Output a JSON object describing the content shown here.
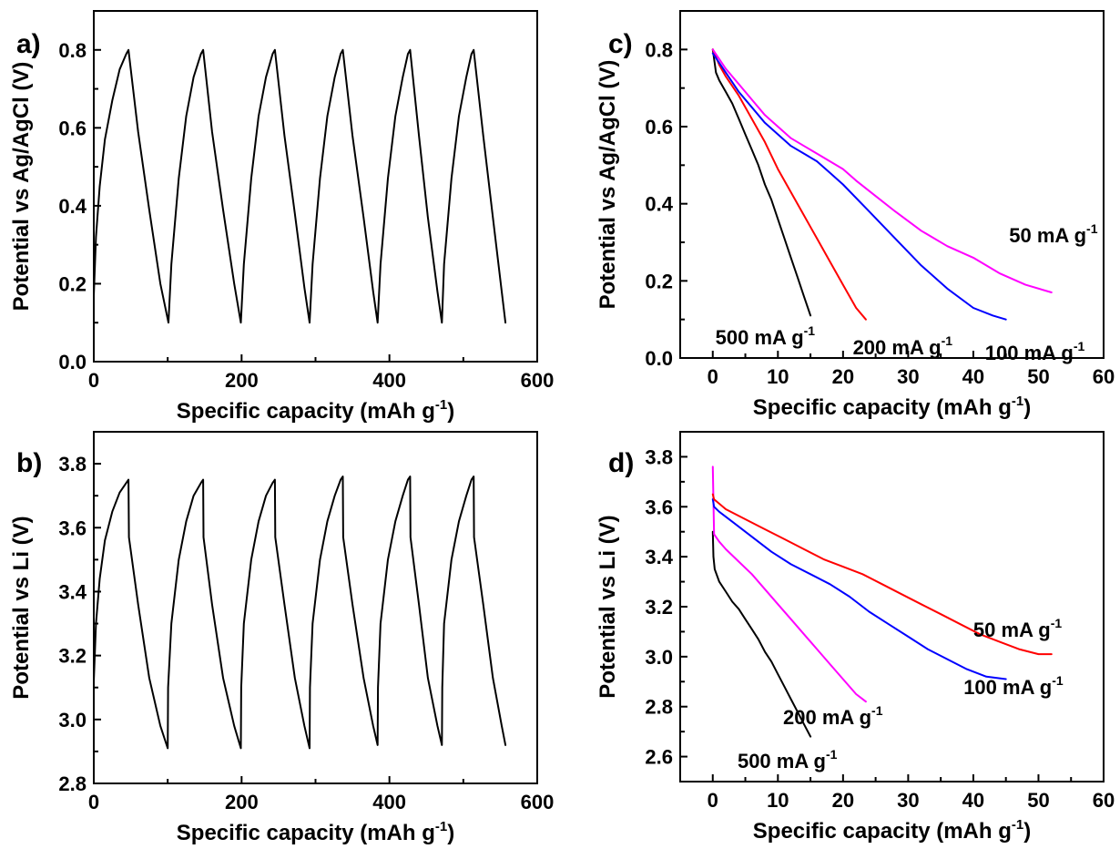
{
  "chart_data": [
    {
      "id": "a",
      "panel_label": "a)",
      "type": "line",
      "xlabel": "Specific capacity (mAh g",
      "xlabel_sup": "-1",
      "xlabel_end": ")",
      "ylabel": "Potential vs Ag/AgCl (V)",
      "xlim": [
        0,
        600
      ],
      "ylim": [
        0,
        0.9
      ],
      "xticks": [
        0,
        200,
        400,
        600
      ],
      "xtick_labels": [
        "0",
        "200",
        "400",
        "600"
      ],
      "yticks": [
        0.0,
        0.2,
        0.4,
        0.6,
        0.8
      ],
      "ytick_labels": [
        "0.0",
        "0.2",
        "0.4",
        "0.6",
        "0.8"
      ],
      "series": [
        {
          "color": "#000000",
          "x": [
            0,
            3,
            8,
            15,
            25,
            35,
            44,
            47,
            60,
            75,
            90,
            101,
            105,
            115,
            125,
            135,
            145,
            148,
            160,
            175,
            190,
            199,
            203,
            213,
            223,
            233,
            242,
            245,
            258,
            272,
            285,
            292,
            296,
            306,
            316,
            326,
            334,
            337,
            350,
            365,
            378,
            384,
            388,
            398,
            408,
            418,
            425,
            428,
            440,
            452,
            465,
            471,
            474,
            484,
            494,
            504,
            511,
            514,
            527,
            540,
            552,
            557
          ],
          "y": [
            0.17,
            0.32,
            0.45,
            0.57,
            0.67,
            0.75,
            0.79,
            0.8,
            0.59,
            0.39,
            0.2,
            0.1,
            0.25,
            0.47,
            0.63,
            0.73,
            0.79,
            0.8,
            0.59,
            0.39,
            0.2,
            0.1,
            0.25,
            0.47,
            0.63,
            0.73,
            0.79,
            0.8,
            0.58,
            0.38,
            0.19,
            0.1,
            0.25,
            0.47,
            0.63,
            0.73,
            0.79,
            0.8,
            0.58,
            0.37,
            0.18,
            0.1,
            0.25,
            0.47,
            0.63,
            0.73,
            0.79,
            0.8,
            0.58,
            0.37,
            0.18,
            0.1,
            0.25,
            0.47,
            0.63,
            0.73,
            0.79,
            0.8,
            0.58,
            0.37,
            0.18,
            0.1
          ]
        }
      ],
      "annotations": []
    },
    {
      "id": "b",
      "panel_label": "b)",
      "type": "line",
      "xlabel": "Specific capacity (mAh g",
      "xlabel_sup": "-1",
      "xlabel_end": ")",
      "ylabel": "Potential vs Li (V)",
      "xlim": [
        0,
        600
      ],
      "ylim": [
        2.8,
        3.9
      ],
      "xticks": [
        0,
        200,
        400,
        600
      ],
      "xtick_labels": [
        "0",
        "200",
        "400",
        "600"
      ],
      "yticks": [
        2.8,
        3.0,
        3.2,
        3.4,
        3.6,
        3.8
      ],
      "ytick_labels": [
        "2.8",
        "3.0",
        "3.2",
        "3.4",
        "3.6",
        "3.8"
      ],
      "series": [
        {
          "color": "#000000",
          "x": [
            0,
            3,
            8,
            15,
            25,
            35,
            44,
            47,
            47.5,
            60,
            75,
            90,
            100,
            100.5,
            105,
            115,
            125,
            135,
            145,
            148,
            148.5,
            160,
            175,
            190,
            199,
            199.5,
            203,
            213,
            223,
            233,
            242,
            245,
            245.5,
            258,
            272,
            285,
            292,
            292.5,
            296,
            306,
            316,
            326,
            334,
            337,
            337.5,
            350,
            365,
            378,
            384,
            384.5,
            388,
            398,
            408,
            418,
            425,
            428,
            428.5,
            440,
            452,
            465,
            471,
            471.5,
            474,
            484,
            494,
            504,
            511,
            514,
            514.5,
            527,
            540,
            552,
            557
          ],
          "y": [
            3.12,
            3.3,
            3.44,
            3.56,
            3.65,
            3.71,
            3.74,
            3.75,
            3.57,
            3.36,
            3.13,
            2.98,
            2.91,
            3.1,
            3.3,
            3.5,
            3.62,
            3.7,
            3.74,
            3.75,
            3.57,
            3.36,
            3.13,
            2.98,
            2.91,
            3.1,
            3.3,
            3.5,
            3.62,
            3.7,
            3.74,
            3.75,
            3.57,
            3.36,
            3.13,
            2.98,
            2.91,
            3.1,
            3.3,
            3.5,
            3.62,
            3.7,
            3.75,
            3.76,
            3.57,
            3.36,
            3.13,
            2.98,
            2.92,
            3.1,
            3.3,
            3.5,
            3.62,
            3.7,
            3.75,
            3.76,
            3.57,
            3.36,
            3.13,
            2.98,
            2.92,
            3.1,
            3.3,
            3.5,
            3.62,
            3.7,
            3.75,
            3.76,
            3.57,
            3.36,
            3.13,
            2.98,
            2.92
          ]
        }
      ],
      "annotations": []
    },
    {
      "id": "c",
      "panel_label": "c)",
      "type": "line",
      "xlabel": "Specific capacity (mAh g",
      "xlabel_sup": "-1",
      "xlabel_end": ")",
      "ylabel": "Potential vs Ag/AgCl (V)",
      "xlim": [
        -5,
        60
      ],
      "ylim": [
        0,
        0.9
      ],
      "xticks": [
        0,
        10,
        20,
        30,
        40,
        50,
        60
      ],
      "xtick_labels": [
        "0",
        "10",
        "20",
        "30",
        "40",
        "50",
        "60"
      ],
      "yticks": [
        0.0,
        0.2,
        0.4,
        0.6,
        0.8
      ],
      "ytick_labels": [
        "0.0",
        "0.2",
        "0.4",
        "0.6",
        "0.8"
      ],
      "series": [
        {
          "label": "500 mA g-1",
          "color": "#000000",
          "x": [
            0,
            0.5,
            1,
            2,
            3,
            4,
            5,
            6,
            7,
            8,
            9,
            10,
            11,
            12,
            13,
            14,
            15
          ],
          "y": [
            0.8,
            0.74,
            0.72,
            0.69,
            0.66,
            0.62,
            0.58,
            0.54,
            0.5,
            0.45,
            0.41,
            0.36,
            0.31,
            0.26,
            0.21,
            0.16,
            0.11
          ]
        },
        {
          "label": "200 mA g-1",
          "color": "#ff0000",
          "x": [
            0,
            1,
            2,
            4,
            6,
            8,
            10,
            12,
            14,
            16,
            18,
            20,
            22,
            23.5
          ],
          "y": [
            0.8,
            0.76,
            0.73,
            0.68,
            0.62,
            0.56,
            0.49,
            0.43,
            0.37,
            0.31,
            0.25,
            0.19,
            0.13,
            0.1
          ]
        },
        {
          "label": "100 mA g-1",
          "color": "#0000ff",
          "x": [
            0,
            2,
            4,
            6,
            8,
            10,
            12,
            14,
            16,
            18,
            20,
            24,
            28,
            32,
            36,
            40,
            43,
            45
          ],
          "y": [
            0.79,
            0.74,
            0.69,
            0.65,
            0.61,
            0.58,
            0.55,
            0.53,
            0.51,
            0.48,
            0.45,
            0.38,
            0.31,
            0.24,
            0.18,
            0.13,
            0.11,
            0.1
          ]
        },
        {
          "label": "50 mA g-1",
          "color": "#ff00ff",
          "x": [
            0,
            2,
            4,
            6,
            8,
            10,
            12,
            14,
            16,
            18,
            20,
            22,
            25,
            28,
            32,
            36,
            40,
            44,
            48,
            52
          ],
          "y": [
            0.8,
            0.75,
            0.71,
            0.67,
            0.63,
            0.6,
            0.57,
            0.55,
            0.53,
            0.51,
            0.49,
            0.46,
            0.42,
            0.38,
            0.33,
            0.29,
            0.26,
            0.22,
            0.19,
            0.17
          ]
        }
      ],
      "annotations": [
        {
          "text": "500 mA g",
          "sup": "-1",
          "x": 0.4,
          "y": 0.035
        },
        {
          "text": "200 mA g",
          "sup": "-1",
          "x": 21.5,
          "y": 0.01
        },
        {
          "text": "100 mA g",
          "sup": "-1",
          "x": 41.8,
          "y": -0.005
        },
        {
          "text": "50 mA g",
          "sup": "-1",
          "x": 45.5,
          "y": 0.3
        }
      ]
    },
    {
      "id": "d",
      "panel_label": "d)",
      "type": "line",
      "xlabel": "Specific capacity (mAh g",
      "xlabel_sup": "-1",
      "xlabel_end": ")",
      "ylabel": "Potential vs Li (V)",
      "xlim": [
        -5,
        60
      ],
      "ylim": [
        2.5,
        3.9
      ],
      "xticks": [
        0,
        10,
        20,
        30,
        40,
        50,
        60
      ],
      "xtick_labels": [
        "0",
        "10",
        "20",
        "30",
        "40",
        "50",
        "60"
      ],
      "yticks": [
        2.6,
        2.8,
        3.0,
        3.2,
        3.4,
        3.6,
        3.8
      ],
      "ytick_labels": [
        "2.6",
        "2.8",
        "3.0",
        "3.2",
        "3.4",
        "3.6",
        "3.8"
      ],
      "series": [
        {
          "label": "500 mA g-1",
          "color": "#000000",
          "x": [
            0,
            0.1,
            0.3,
            1,
            2,
            3,
            4,
            5,
            6,
            7,
            8,
            9,
            10,
            11,
            12,
            13,
            14,
            15
          ],
          "y": [
            3.5,
            3.4,
            3.35,
            3.3,
            3.26,
            3.22,
            3.19,
            3.15,
            3.11,
            3.07,
            3.02,
            2.98,
            2.93,
            2.88,
            2.83,
            2.78,
            2.73,
            2.68
          ]
        },
        {
          "label": "200 mA g-1",
          "color": "#ff00ff",
          "x": [
            0,
            0.2,
            1,
            2,
            4,
            6,
            8,
            10,
            12,
            14,
            16,
            18,
            20,
            22,
            23.5
          ],
          "y": [
            3.76,
            3.49,
            3.46,
            3.43,
            3.38,
            3.33,
            3.27,
            3.21,
            3.15,
            3.09,
            3.03,
            2.97,
            2.91,
            2.85,
            2.82
          ]
        },
        {
          "label": "100 mA g-1",
          "color": "#0000ff",
          "x": [
            0,
            0.2,
            1,
            3,
            6,
            9,
            12,
            15,
            18,
            21,
            24,
            27,
            30,
            33,
            36,
            39,
            42,
            45
          ],
          "y": [
            3.63,
            3.6,
            3.58,
            3.54,
            3.48,
            3.42,
            3.37,
            3.33,
            3.29,
            3.24,
            3.18,
            3.13,
            3.08,
            3.03,
            2.99,
            2.95,
            2.92,
            2.91
          ]
        },
        {
          "label": "50 mA g-1",
          "color": "#ff0000",
          "x": [
            0,
            0.2,
            2,
            5,
            8,
            11,
            14,
            17,
            20,
            23,
            26,
            29,
            32,
            35,
            38,
            41,
            44,
            47,
            50,
            52
          ],
          "y": [
            3.65,
            3.63,
            3.59,
            3.55,
            3.51,
            3.47,
            3.43,
            3.39,
            3.36,
            3.33,
            3.29,
            3.25,
            3.21,
            3.17,
            3.13,
            3.09,
            3.06,
            3.03,
            3.01,
            3.01
          ]
        }
      ],
      "annotations": [
        {
          "text": "500 mA g",
          "sup": "-1",
          "x": 3.8,
          "y": 2.555
        },
        {
          "text": "200 mA g",
          "sup": "-1",
          "x": 10.8,
          "y": 2.73
        },
        {
          "text": "100 mA g",
          "sup": "-1",
          "x": 38.5,
          "y": 2.85
        },
        {
          "text": "50 mA g",
          "sup": "-1",
          "x": 40,
          "y": 3.08
        }
      ]
    }
  ]
}
